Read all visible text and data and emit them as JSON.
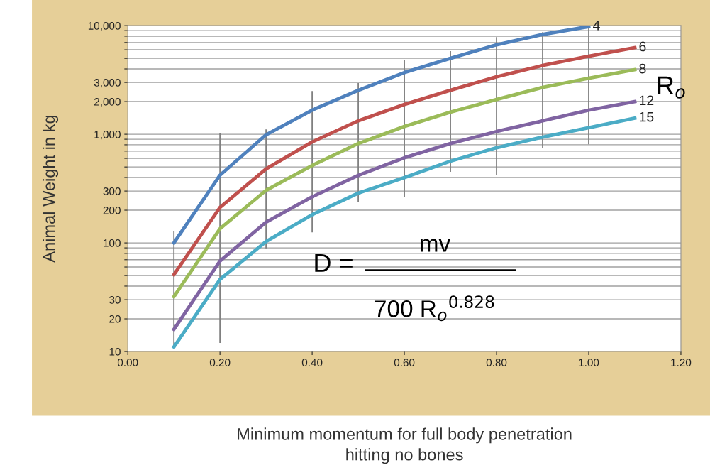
{
  "chart_data": {
    "type": "line",
    "xlabel": "Minimum momentum for full body penetration\nhitting no bones",
    "ylabel": "Animal Weight in kg",
    "x": [
      0.1,
      0.2,
      0.3,
      0.4,
      0.5,
      0.6,
      0.7,
      0.8,
      0.9,
      1.0,
      1.1
    ],
    "series": [
      {
        "name": "4",
        "color": "#4f81bd",
        "x": [
          0.1,
          0.2,
          0.3,
          0.4,
          0.5,
          0.6,
          0.7,
          0.8,
          0.9,
          1.0
        ],
        "values": [
          100,
          420,
          990,
          1670,
          2540,
          3700,
          5000,
          6670,
          8300,
          9800
        ]
      },
      {
        "name": "6",
        "color": "#c0504d",
        "values": [
          51,
          212,
          480,
          850,
          1330,
          1880,
          2540,
          3380,
          4300,
          5240,
          6270
        ]
      },
      {
        "name": "8",
        "color": "#9bbb59",
        "values": [
          32,
          135,
          305,
          516,
          822,
          1180,
          1600,
          2090,
          2700,
          3280,
          3930
        ],
        "errors": [
          [
            11,
            129
          ],
          [
            12,
            1030
          ],
          [
            89,
            1110
          ],
          [
            125,
            2500
          ],
          [
            236,
            2960
          ],
          [
            262,
            4790
          ],
          [
            451,
            5820
          ],
          [
            418,
            7850
          ],
          [
            752,
            8730
          ],
          [
            809,
            10000
          ],
          null
        ]
      },
      {
        "name": "12",
        "color": "#8064a2",
        "values": [
          16,
          68,
          155,
          266,
          418,
          608,
          822,
          1060,
          1330,
          1670,
          2000
        ]
      },
      {
        "name": "15",
        "color": "#4bacc6",
        "values": [
          11,
          46,
          103,
          182,
          287,
          399,
          565,
          752,
          942,
          1150,
          1410
        ]
      }
    ],
    "log": "y",
    "xlim": [
      0,
      1.2
    ],
    "xticks": [
      {
        "value": 0,
        "label": "0.00"
      },
      {
        "value": 0.2,
        "label": "0.20"
      },
      {
        "value": 0.4,
        "label": "0.40"
      },
      {
        "value": 0.6,
        "label": "0.60"
      },
      {
        "value": 0.8,
        "label": "0.80"
      },
      {
        "value": 1.0,
        "label": "1.00"
      },
      {
        "value": 1.2,
        "label": "1.20"
      }
    ],
    "ylim": [
      10,
      10000
    ],
    "yticks": [
      {
        "value": 10,
        "label": "10"
      },
      {
        "value": 20,
        "label": "20"
      },
      {
        "value": 30,
        "label": "30"
      },
      {
        "value": 40,
        "label": null
      },
      {
        "value": 50,
        "label": null
      },
      {
        "value": 60,
        "label": null
      },
      {
        "value": 70,
        "label": null
      },
      {
        "value": 80,
        "label": null
      },
      {
        "value": 90,
        "label": null
      },
      {
        "value": 100,
        "label": "100"
      },
      {
        "value": 200,
        "label": "200"
      },
      {
        "value": 300,
        "label": "300"
      },
      {
        "value": 400,
        "label": null
      },
      {
        "value": 500,
        "label": null
      },
      {
        "value": 600,
        "label": null
      },
      {
        "value": 700,
        "label": null
      },
      {
        "value": 800,
        "label": null
      },
      {
        "value": 900,
        "label": null
      },
      {
        "value": 1000,
        "label": "1,000"
      },
      {
        "value": 2000,
        "label": "2,000"
      },
      {
        "value": 3000,
        "label": "3,000"
      },
      {
        "value": 4000,
        "label": null
      },
      {
        "value": 5000,
        "label": null
      },
      {
        "value": 6000,
        "label": null
      },
      {
        "value": 7000,
        "label": null
      },
      {
        "value": 8000,
        "label": null
      },
      {
        "value": 9000,
        "label": null
      },
      {
        "value": 10000,
        "label": "10,000"
      }
    ],
    "grid": "y",
    "legend": false,
    "marker": "none",
    "line_style": "solid",
    "annotations": [
      "R$_{o}$",
      "D =",
      "mv",
      "700 R$_{o}$$^{0.828}$"
    ]
  }
}
